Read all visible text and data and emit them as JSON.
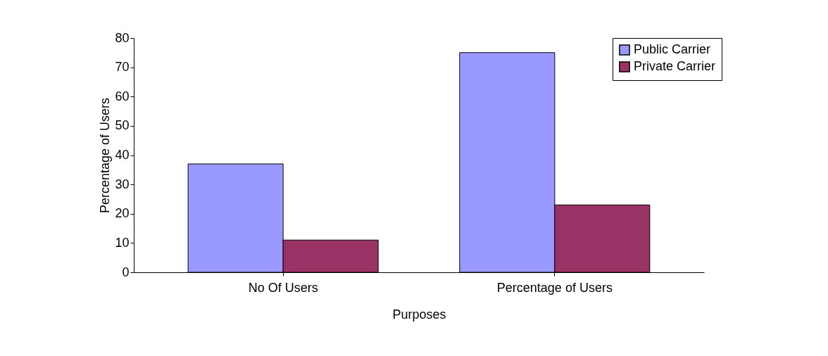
{
  "chart_data": {
    "type": "bar",
    "xlabel": "Purposes",
    "ylabel": "Percentage of Users",
    "categories": [
      "No Of Users",
      "Percentage of Users"
    ],
    "series": [
      {
        "name": "Public Carrier",
        "color": "#9999ff",
        "values": [
          37,
          75
        ]
      },
      {
        "name": "Private Carrier",
        "color": "#993366",
        "values": [
          11,
          23
        ]
      }
    ],
    "ylim": [
      0,
      80
    ],
    "yticks": [
      0,
      10,
      20,
      30,
      40,
      50,
      60,
      70,
      80
    ],
    "legend": "right",
    "grid": false
  }
}
